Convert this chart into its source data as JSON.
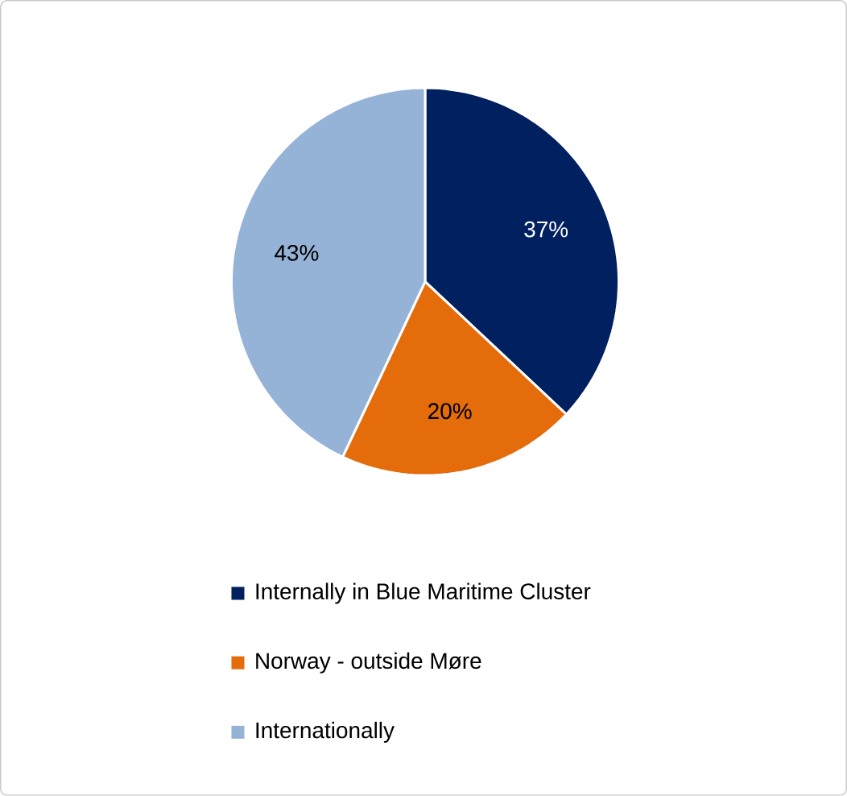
{
  "chart_data": {
    "type": "pie",
    "categories": [
      "Internally in Blue Maritime Cluster",
      "Norway - outside Møre",
      "Internationally"
    ],
    "values": [
      37,
      20,
      43
    ],
    "value_labels": [
      "37%",
      "20%",
      "43%"
    ],
    "colors": [
      "#002060",
      "#e46c0a",
      "#95b3d7"
    ],
    "legend": "bottom"
  }
}
